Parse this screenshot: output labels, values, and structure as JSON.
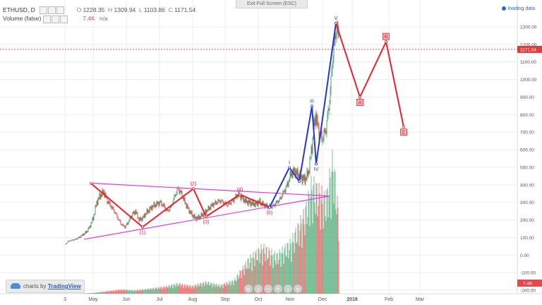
{
  "header": {
    "exit_label": "Exit Full Screen (ESC)",
    "symbol": "ETHUSD, D",
    "ohlc": {
      "o_label": "O",
      "o": "1228.35",
      "h_label": "H",
      "h": "1309.94",
      "l_label": "L",
      "l": "1103.86",
      "c_label": "C",
      "c": "1171.54"
    },
    "volume_label": "Volume (false)",
    "volume_value": "7.4K",
    "volume_extra": "n/a",
    "loading_text": "loading data"
  },
  "footer": {
    "brand_prefix": "charts by",
    "brand_name": "TradingView",
    "nav_buttons": [
      "«",
      "‹",
      "−",
      "+",
      "›",
      "»"
    ]
  },
  "colors": {
    "up": "#3fa36b",
    "down": "#e5474a",
    "triangle": "#e23ddc",
    "wave_red": "#e8232b",
    "wave_blue": "#2436d8",
    "price_line": "#e23b3b",
    "grid": "#ececec"
  },
  "chart_data": {
    "type": "candlestick",
    "price_axis_ticks": [
      1300,
      1200,
      1100,
      1000,
      900,
      800,
      700,
      600,
      500,
      400,
      300,
      200,
      100,
      0,
      -100,
      -200
    ],
    "price_axis_labels": [
      "1300.00",
      "1200.00",
      "1100.00",
      "1000.00",
      "900.00",
      "800.00",
      "700.00",
      "600.00",
      "500.00",
      "400.00",
      "300.00",
      "200.00",
      "100.00",
      "0.00",
      "-100.00",
      "-200.00"
    ],
    "last_price": 1171.54,
    "last_price_label": "1171.54",
    "volume_tag": "7.4K",
    "x_ticks": [
      {
        "label": "3",
        "x": 0
      },
      {
        "label": "May",
        "x": 40
      },
      {
        "label": "Jun",
        "x": 87
      },
      {
        "label": "Jul",
        "x": 134
      },
      {
        "label": "Aug",
        "x": 181
      },
      {
        "label": "Sep",
        "x": 227
      },
      {
        "label": "Oct",
        "x": 274
      },
      {
        "label": "Nov",
        "x": 319
      },
      {
        "label": "Dec",
        "x": 365
      },
      {
        "label": "2018",
        "x": 407
      },
      {
        "label": "Feb",
        "x": 459
      },
      {
        "label": "Mar",
        "x": 503
      }
    ],
    "price_path": [
      [
        0,
        60
      ],
      [
        5,
        80
      ],
      [
        10,
        85
      ],
      [
        15,
        90
      ],
      [
        20,
        100
      ],
      [
        25,
        115
      ],
      [
        30,
        130
      ],
      [
        35,
        160
      ],
      [
        40,
        210
      ],
      [
        45,
        300
      ],
      [
        50,
        340
      ],
      [
        55,
        360
      ],
      [
        60,
        310
      ],
      [
        65,
        280
      ],
      [
        70,
        250
      ],
      [
        75,
        210
      ],
      [
        80,
        175
      ],
      [
        85,
        160
      ],
      [
        90,
        190
      ],
      [
        95,
        230
      ],
      [
        100,
        250
      ],
      [
        105,
        200
      ],
      [
        110,
        210
      ],
      [
        115,
        240
      ],
      [
        120,
        260
      ],
      [
        125,
        280
      ],
      [
        130,
        290
      ],
      [
        135,
        300
      ],
      [
        140,
        280
      ],
      [
        145,
        250
      ],
      [
        150,
        270
      ],
      [
        155,
        330
      ],
      [
        160,
        380
      ],
      [
        165,
        350
      ],
      [
        170,
        300
      ],
      [
        175,
        260
      ],
      [
        180,
        230
      ],
      [
        185,
        210
      ],
      [
        190,
        215
      ],
      [
        195,
        230
      ],
      [
        200,
        250
      ],
      [
        205,
        270
      ],
      [
        210,
        290
      ],
      [
        215,
        300
      ],
      [
        220,
        310
      ],
      [
        225,
        300
      ],
      [
        230,
        285
      ],
      [
        235,
        300
      ],
      [
        240,
        320
      ],
      [
        245,
        345
      ],
      [
        250,
        330
      ],
      [
        255,
        310
      ],
      [
        260,
        300
      ],
      [
        265,
        295
      ],
      [
        270,
        290
      ],
      [
        275,
        305
      ],
      [
        280,
        290
      ],
      [
        285,
        280
      ],
      [
        290,
        275
      ],
      [
        295,
        280
      ],
      [
        300,
        300
      ],
      [
        305,
        320
      ],
      [
        310,
        360
      ],
      [
        315,
        400
      ],
      [
        320,
        460
      ],
      [
        325,
        480
      ],
      [
        330,
        460
      ],
      [
        335,
        440
      ],
      [
        340,
        430
      ],
      [
        345,
        470
      ],
      [
        350,
        620
      ],
      [
        355,
        800
      ],
      [
        360,
        700
      ],
      [
        365,
        660
      ],
      [
        370,
        720
      ],
      [
        375,
        880
      ],
      [
        380,
        1150
      ],
      [
        385,
        1300
      ],
      [
        388,
        1230
      ]
    ],
    "volume_path": [
      [
        0,
        0
      ],
      [
        20,
        0
      ],
      [
        40,
        1
      ],
      [
        60,
        3
      ],
      [
        80,
        5
      ],
      [
        100,
        4
      ],
      [
        120,
        6
      ],
      [
        140,
        8
      ],
      [
        160,
        12
      ],
      [
        180,
        9
      ],
      [
        200,
        14
      ],
      [
        220,
        10
      ],
      [
        240,
        16
      ],
      [
        260,
        40
      ],
      [
        280,
        55
      ],
      [
        300,
        45
      ],
      [
        320,
        60
      ],
      [
        340,
        95
      ],
      [
        350,
        130
      ],
      [
        360,
        120
      ],
      [
        370,
        110
      ],
      [
        380,
        160
      ],
      [
        388,
        90
      ]
    ],
    "triangle": {
      "upper": [
        [
          37,
          410
        ],
        [
          375,
          336
        ]
      ],
      "lower": [
        [
          37,
          90
        ],
        [
          375,
          336
        ]
      ]
    },
    "waves": [
      {
        "color_key": "wave_red",
        "points": [
          [
            37,
            408
          ],
          [
            110,
            160
          ],
          [
            182,
            378
          ],
          [
            200,
            220
          ],
          [
            248,
            345
          ],
          [
            290,
            272
          ]
        ],
        "labels": [
          {
            "t": "(1)",
            "x": 110,
            "y": 160,
            "pos": "below"
          },
          {
            "t": "(2)",
            "x": 182,
            "y": 378,
            "pos": "above"
          },
          {
            "t": "(3)",
            "x": 200,
            "y": 220,
            "pos": "below"
          },
          {
            "t": "(4)",
            "x": 248,
            "y": 345,
            "pos": "above"
          },
          {
            "t": "(5)",
            "x": 290,
            "y": 272,
            "pos": "below"
          }
        ]
      },
      {
        "color_key": "wave_blue",
        "points": [
          [
            290,
            272
          ],
          [
            318,
            498
          ],
          [
            332,
            420
          ],
          [
            350,
            848
          ],
          [
            356,
            520
          ],
          [
            384,
            1320
          ]
        ],
        "labels": [
          {
            "t": "I",
            "x": 318,
            "y": 498,
            "pos": "above"
          },
          {
            "t": "III",
            "x": 350,
            "y": 848,
            "pos": "above"
          },
          {
            "t": "IV",
            "x": 356,
            "y": 520,
            "pos": "below"
          },
          {
            "t": "V",
            "x": 384,
            "y": 1320,
            "pos": "above"
          }
        ]
      },
      {
        "color_key": "wave_red",
        "points": [
          [
            384,
            1320
          ],
          [
            418,
            900
          ],
          [
            455,
            1215
          ],
          [
            480,
            730
          ]
        ],
        "labels": [
          {
            "t": "A",
            "x": 418,
            "y": 900,
            "pos": "box-below"
          },
          {
            "t": "B",
            "x": 455,
            "y": 1215,
            "pos": "box-above"
          },
          {
            "t": "C",
            "x": 480,
            "y": 730,
            "pos": "box-below"
          }
        ]
      }
    ]
  }
}
